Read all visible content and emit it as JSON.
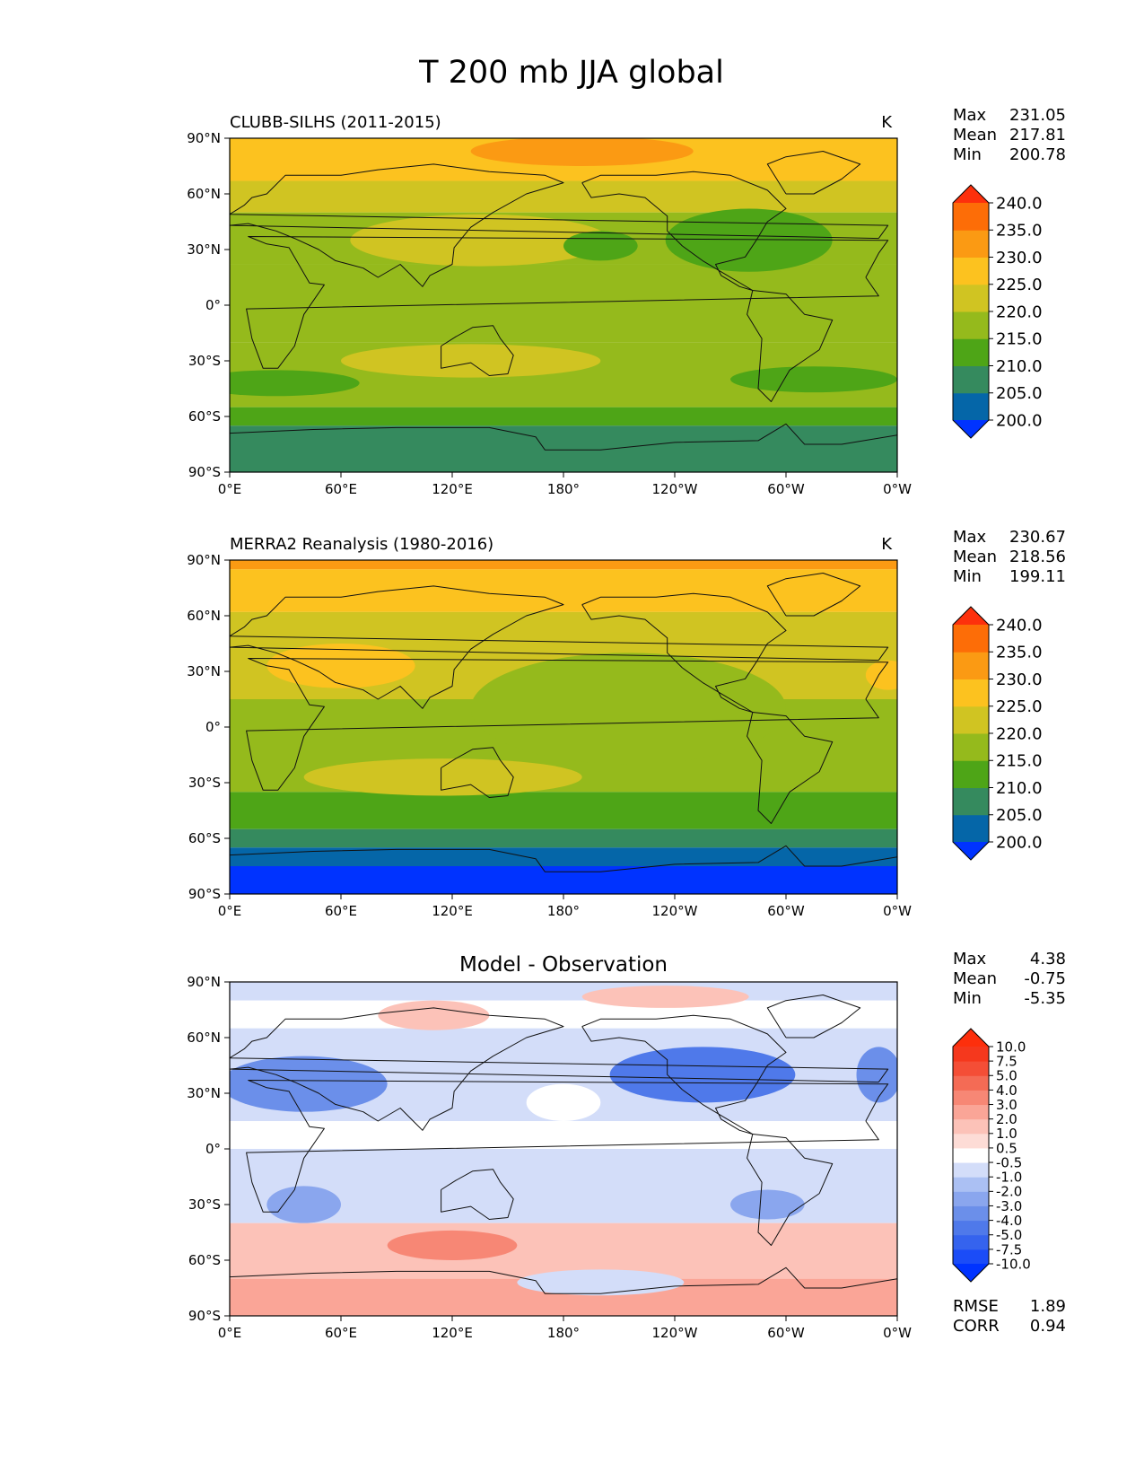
{
  "figure_title": "T 200 mb JJA global",
  "chart_data": [
    {
      "type": "heatmap",
      "panel": "test",
      "title_left": "CLUBB-SILHS (2011-2015)",
      "title_right": "K",
      "title_center": "",
      "stats": [
        {
          "label": "Max",
          "value": "231.05"
        },
        {
          "label": "Mean",
          "value": "217.81"
        },
        {
          "label": "Min",
          "value": "200.78"
        }
      ],
      "colorbar": {
        "levels": [
          200,
          205,
          210,
          215,
          220,
          225,
          230,
          235,
          240
        ],
        "labels": [
          "200.0",
          "205.0",
          "210.0",
          "215.0",
          "220.0",
          "225.0",
          "230.0",
          "235.0",
          "240.0"
        ],
        "colors": [
          "#0033ff",
          "#0566a8",
          "#358a5e",
          "#4ea517",
          "#95ba1c",
          "#d0c422",
          "#fcc21f",
          "#fb9a13",
          "#fd6d07",
          "#fd300c"
        ],
        "extend": "both"
      },
      "bands": [
        {
          "lat_top": 90,
          "lat_bottom": 67,
          "value": 227
        },
        {
          "lat_top": 67,
          "lat_bottom": 50,
          "value": 222
        },
        {
          "lat_top": 50,
          "lat_bottom": 22,
          "value": 218
        },
        {
          "lat_top": 22,
          "lat_bottom": -20,
          "value": 216
        },
        {
          "lat_top": -20,
          "lat_bottom": -30,
          "value": 219
        },
        {
          "lat_top": -30,
          "lat_bottom": -55,
          "value": 215
        },
        {
          "lat_top": -55,
          "lat_bottom": -65,
          "value": 211
        },
        {
          "lat_top": -65,
          "lat_bottom": -90,
          "value": 207
        }
      ],
      "blobs": [
        {
          "lon": 135,
          "lat": 35,
          "rlon": 70,
          "rlat": 14,
          "value": 222
        },
        {
          "lon": 200,
          "lat": 32,
          "rlon": 20,
          "rlat": 8,
          "value": 212
        },
        {
          "lon": 280,
          "lat": 35,
          "rlon": 45,
          "rlat": 17,
          "value": 212
        },
        {
          "lon": 130,
          "lat": -30,
          "rlon": 70,
          "rlat": 9,
          "value": 221
        },
        {
          "lon": 315,
          "lat": -40,
          "rlon": 45,
          "rlat": 7,
          "value": 212
        },
        {
          "lon": 25,
          "lat": -42,
          "rlon": 45,
          "rlat": 7,
          "value": 212
        },
        {
          "lon": 190,
          "lat": 83,
          "rlon": 60,
          "rlat": 8,
          "value": 232
        }
      ],
      "axes": {
        "lon_ticks": [
          "0°E",
          "60°E",
          "120°E",
          "180°",
          "120°W",
          "60°W",
          "0°W"
        ],
        "lat_ticks": [
          "90°N",
          "60°N",
          "30°N",
          "0°",
          "30°S",
          "60°S",
          "90°S"
        ],
        "lon_range": [
          0,
          360
        ],
        "lat_range": [
          -90,
          90
        ]
      }
    },
    {
      "type": "heatmap",
      "panel": "reference",
      "title_left": "MERRA2 Reanalysis (1980-2016)",
      "title_right": "K",
      "title_center": "",
      "stats": [
        {
          "label": "Max",
          "value": "230.67"
        },
        {
          "label": "Mean",
          "value": "218.56"
        },
        {
          "label": "Min",
          "value": "199.11"
        }
      ],
      "colorbar": {
        "levels": [
          200,
          205,
          210,
          215,
          220,
          225,
          230,
          235,
          240
        ],
        "labels": [
          "200.0",
          "205.0",
          "210.0",
          "215.0",
          "220.0",
          "225.0",
          "230.0",
          "235.0",
          "240.0"
        ],
        "colors": [
          "#0033ff",
          "#0566a8",
          "#358a5e",
          "#4ea517",
          "#95ba1c",
          "#d0c422",
          "#fcc21f",
          "#fb9a13",
          "#fd6d07",
          "#fd300c"
        ],
        "extend": "both"
      },
      "bands": [
        {
          "lat_top": 90,
          "lat_bottom": 85,
          "value": 231
        },
        {
          "lat_top": 85,
          "lat_bottom": 62,
          "value": 227
        },
        {
          "lat_top": 62,
          "lat_bottom": 15,
          "value": 221
        },
        {
          "lat_top": 15,
          "lat_bottom": -35,
          "value": 217
        },
        {
          "lat_top": -35,
          "lat_bottom": -55,
          "value": 213
        },
        {
          "lat_top": -55,
          "lat_bottom": -65,
          "value": 208
        },
        {
          "lat_top": -65,
          "lat_bottom": -75,
          "value": 203
        },
        {
          "lat_top": -75,
          "lat_bottom": -90,
          "value": 199
        }
      ],
      "blobs": [
        {
          "lon": 60,
          "lat": 33,
          "rlon": 40,
          "rlat": 12,
          "value": 226
        },
        {
          "lon": 115,
          "lat": -27,
          "rlon": 75,
          "rlat": 10,
          "value": 221
        },
        {
          "lon": 240,
          "lat": 28,
          "rlon": 12,
          "rlat": 6,
          "value": 226
        },
        {
          "lon": 355,
          "lat": 28,
          "rlon": 12,
          "rlat": 8,
          "value": 226
        },
        {
          "lon": 215,
          "lat": 10,
          "rlon": 85,
          "rlat": 30,
          "value": 217
        }
      ],
      "axes": {
        "lon_ticks": [
          "0°E",
          "60°E",
          "120°E",
          "180°",
          "120°W",
          "60°W",
          "0°W"
        ],
        "lat_ticks": [
          "90°N",
          "60°N",
          "30°N",
          "0°",
          "30°S",
          "60°S",
          "90°S"
        ],
        "lon_range": [
          0,
          360
        ],
        "lat_range": [
          -90,
          90
        ]
      }
    },
    {
      "type": "heatmap",
      "panel": "difference",
      "title_left": "",
      "title_right": "",
      "title_center": "Model - Observation",
      "stats": [
        {
          "label": "Max",
          "value": "4.38"
        },
        {
          "label": "Mean",
          "value": "-0.75"
        },
        {
          "label": "Min",
          "value": "-5.35"
        }
      ],
      "metrics": [
        {
          "label": "RMSE",
          "value": "1.89"
        },
        {
          "label": "CORR",
          "value": "0.94"
        }
      ],
      "colorbar": {
        "levels": [
          -10,
          -7.5,
          -5,
          -4,
          -3,
          -2,
          -1,
          -0.5,
          0.5,
          1,
          2,
          3,
          4,
          5,
          7.5,
          10
        ],
        "labels": [
          "-10.0",
          "-7.5",
          "-5.0",
          "-4.0",
          "-3.0",
          "-2.0",
          "-1.0",
          "-0.5",
          "0.5",
          "1.0",
          "2.0",
          "3.0",
          "4.0",
          "5.0",
          "7.5",
          "10.0"
        ],
        "colors": [
          "#0033ff",
          "#1b4cf7",
          "#3563ee",
          "#4f79ea",
          "#6b8fea",
          "#8aa6ee",
          "#abc0f3",
          "#d3ddf9",
          "#ffffff",
          "#fddcd6",
          "#fcc2b8",
          "#faa597",
          "#f78775",
          "#f46b55",
          "#f44e36",
          "#f5381d",
          "#fd2f0c"
        ],
        "extend": "both"
      },
      "bands": [
        {
          "lat_top": 90,
          "lat_bottom": 80,
          "value": -0.8
        },
        {
          "lat_top": 80,
          "lat_bottom": 65,
          "value": 0
        },
        {
          "lat_top": 65,
          "lat_bottom": 15,
          "value": -0.8
        },
        {
          "lat_top": 15,
          "lat_bottom": 0,
          "value": 0
        },
        {
          "lat_top": 0,
          "lat_bottom": -40,
          "value": -0.8
        },
        {
          "lat_top": -40,
          "lat_bottom": -70,
          "value": 1.5
        },
        {
          "lat_top": -70,
          "lat_bottom": -90,
          "value": 2.5
        }
      ],
      "blobs": [
        {
          "lon": 40,
          "lat": 35,
          "rlon": 45,
          "rlat": 15,
          "value": -3.5
        },
        {
          "lon": 255,
          "lat": 40,
          "rlon": 50,
          "rlat": 15,
          "value": -4.5
        },
        {
          "lon": 350,
          "lat": 40,
          "rlon": 12,
          "rlat": 15,
          "value": -3.5
        },
        {
          "lon": 110,
          "lat": 72,
          "rlon": 30,
          "rlat": 8,
          "value": 1.5
        },
        {
          "lon": 235,
          "lat": 82,
          "rlon": 45,
          "rlat": 6,
          "value": 1.5
        },
        {
          "lon": 180,
          "lat": 25,
          "rlon": 20,
          "rlat": 10,
          "value": 0
        },
        {
          "lon": 120,
          "lat": -52,
          "rlon": 35,
          "rlat": 8,
          "value": 3.5
        },
        {
          "lon": 200,
          "lat": -72,
          "rlon": 45,
          "rlat": 7,
          "value": -0.8
        },
        {
          "lon": 40,
          "lat": -30,
          "rlon": 20,
          "rlat": 10,
          "value": -2.5
        },
        {
          "lon": 290,
          "lat": -30,
          "rlon": 20,
          "rlat": 8,
          "value": -2.5
        }
      ],
      "axes": {
        "lon_ticks": [
          "0°E",
          "60°E",
          "120°E",
          "180°",
          "120°W",
          "60°W",
          "0°W"
        ],
        "lat_ticks": [
          "90°N",
          "60°N",
          "30°N",
          "0°",
          "30°S",
          "60°S",
          "90°S"
        ],
        "lon_range": [
          0,
          360
        ],
        "lat_range": [
          -90,
          90
        ]
      }
    }
  ]
}
